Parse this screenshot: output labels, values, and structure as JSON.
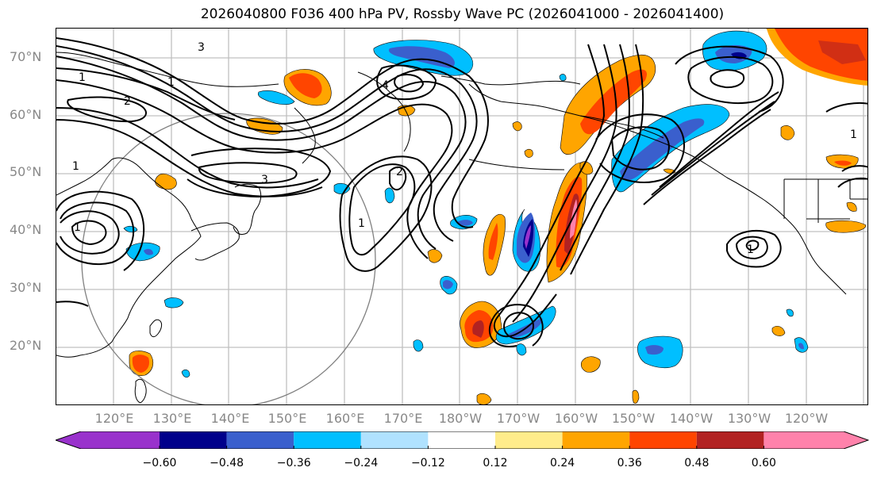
{
  "title": "2026040800 F036 400 hPa PV, Rossby Wave PC (2026041000 - 2026041400)",
  "map": {
    "projection": "cylindrical",
    "lon_range_label": "120°E to 120°W",
    "lat_labels": [
      "70°N",
      "60°N",
      "50°N",
      "40°N",
      "30°N",
      "20°N"
    ],
    "lon_labels": [
      "120°E",
      "130°E",
      "140°E",
      "150°E",
      "160°E",
      "170°E",
      "180°W",
      "170°W",
      "160°W",
      "150°W",
      "140°W",
      "130°W",
      "120°W"
    ],
    "pv_contour_labels": [
      "1",
      "1",
      "2",
      "3",
      "3",
      "4",
      "2",
      "1",
      "1",
      "1",
      "1",
      "1"
    ],
    "range_circle_color": "#808080",
    "gridline_color": "#c0c0c0"
  },
  "colorbar": {
    "ticks": [
      "−0.60",
      "−0.48",
      "−0.36",
      "−0.24",
      "−0.12",
      "0.12",
      "0.24",
      "0.36",
      "0.48",
      "0.60"
    ],
    "bins": [
      {
        "range": "< -0.60",
        "color": "#9932cc"
      },
      {
        "range": "-0.60 to -0.48",
        "color": "#00008b"
      },
      {
        "range": "-0.48 to -0.36",
        "color": "#3a5fcd"
      },
      {
        "range": "-0.36 to -0.24",
        "color": "#00bfff"
      },
      {
        "range": "-0.24 to -0.12",
        "color": "#b0e2ff"
      },
      {
        "range": "-0.12 to 0.12",
        "color": "#ffffff"
      },
      {
        "range": "0.12 to 0.24",
        "color": "#ffec8b"
      },
      {
        "range": "0.24 to 0.36",
        "color": "#ffa500"
      },
      {
        "range": "0.36 to 0.48",
        "color": "#ff4500"
      },
      {
        "range": "0.48 to 0.60",
        "color": "#b22222"
      },
      {
        "range": "> 0.60",
        "color": "#ff82ab"
      }
    ],
    "extend": "both"
  }
}
